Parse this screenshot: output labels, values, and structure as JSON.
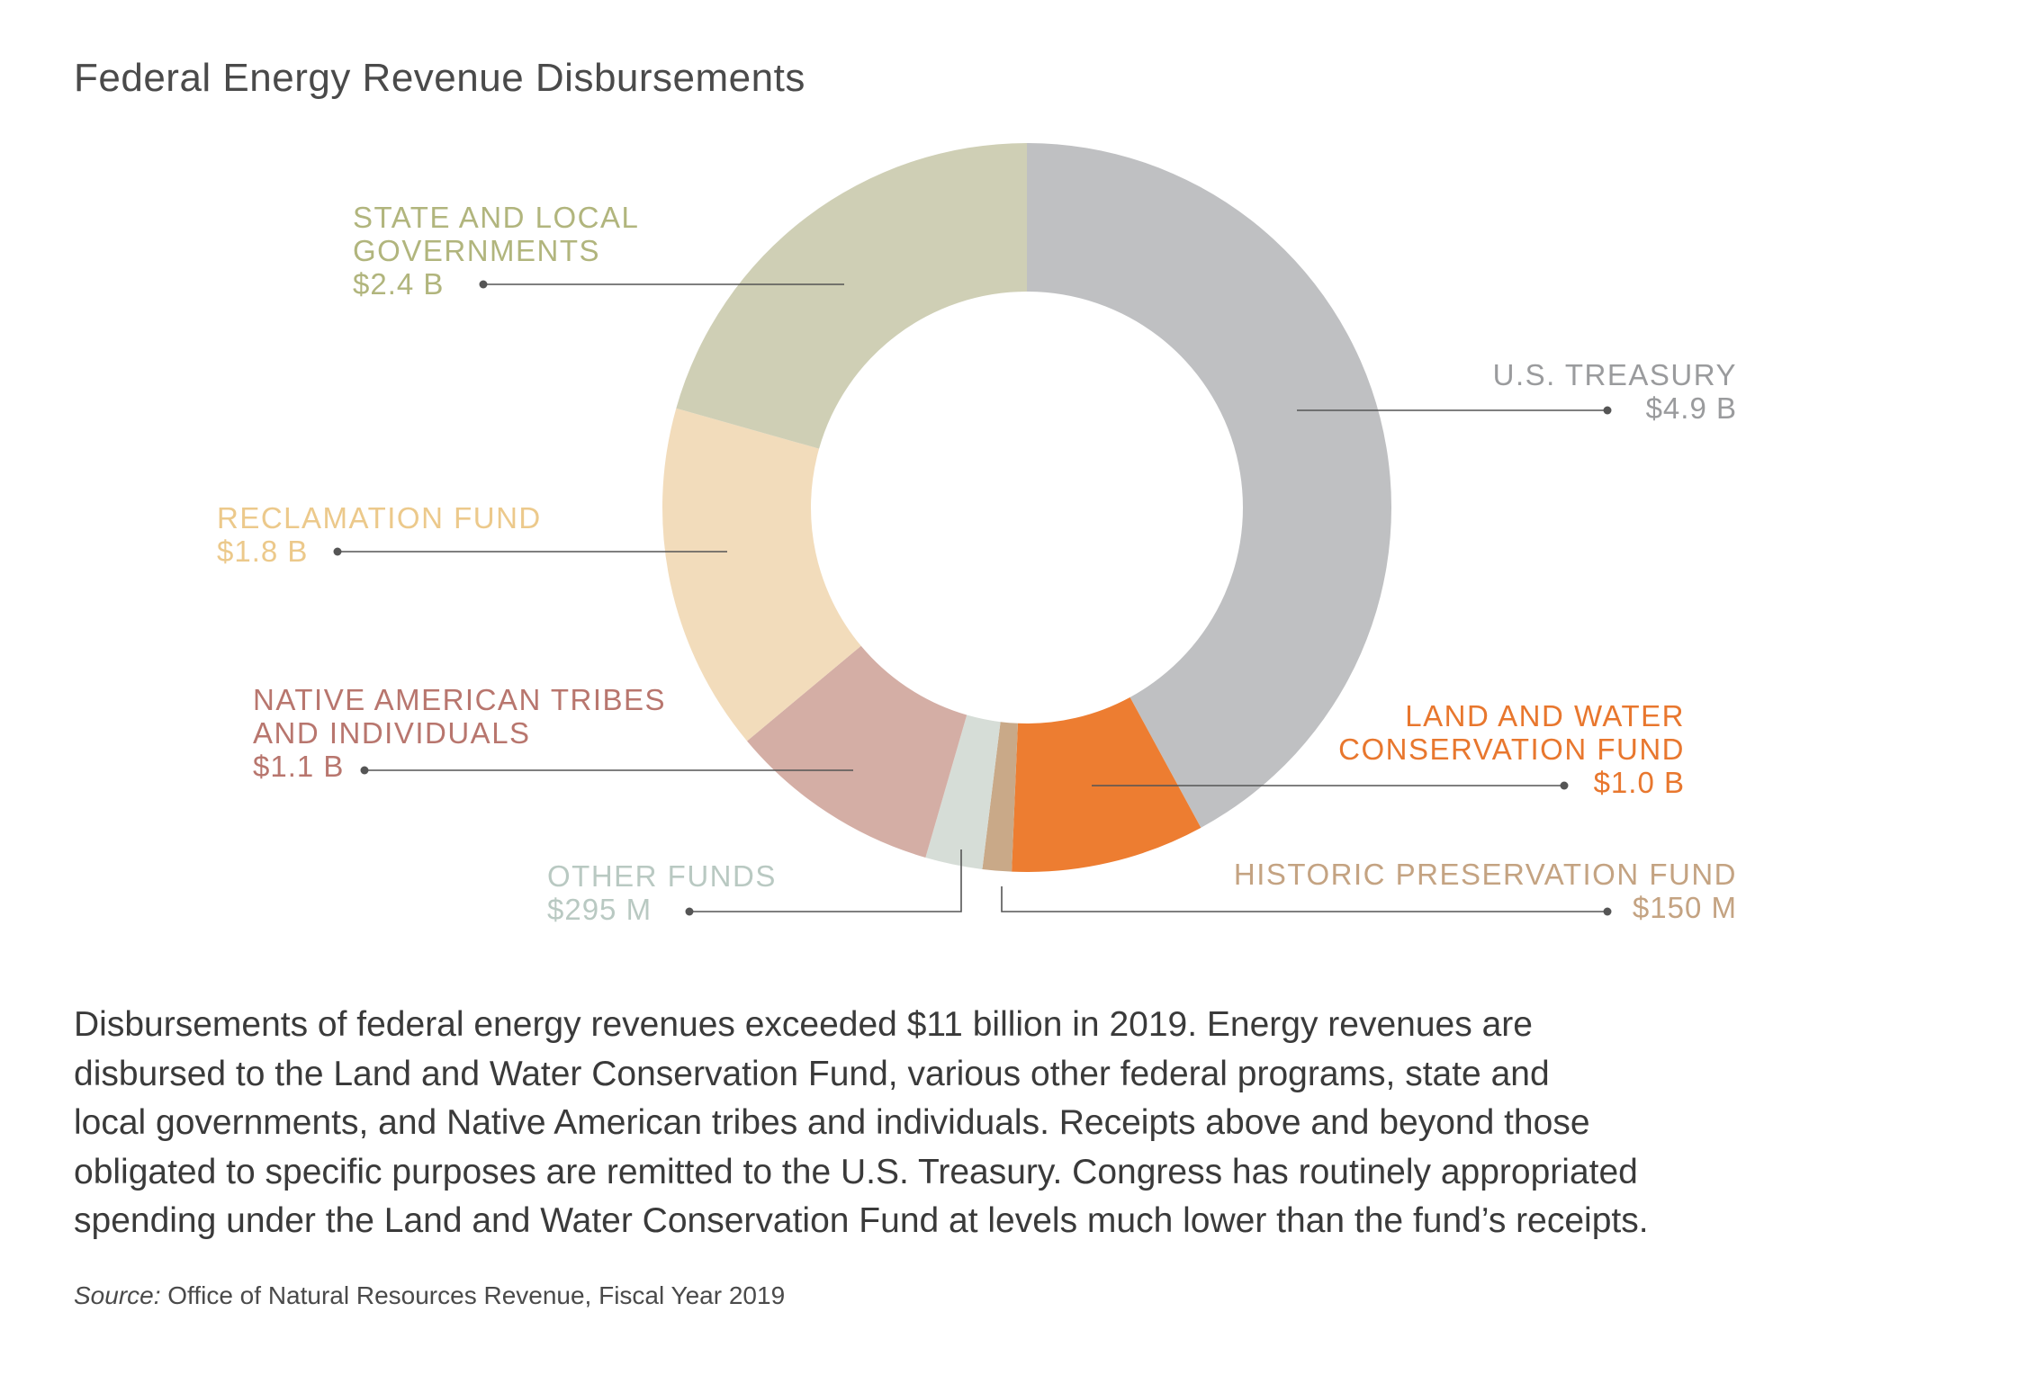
{
  "chart_data": {
    "type": "pie",
    "donut": true,
    "title": "Federal Energy Revenue Disbursements",
    "slices": [
      {
        "label_lines": [
          "U.S. TREASURY"
        ],
        "value_label": "$4.9 B",
        "value": 4.9,
        "color": "#bfc0c2"
      },
      {
        "label_lines": [
          "LAND AND WATER",
          "CONSERVATION FUND"
        ],
        "value_label": "$1.0 B",
        "value": 1.0,
        "color": "#ed7d31"
      },
      {
        "label_lines": [
          "HISTORIC PRESERVATION FUND"
        ],
        "value_label": "$150 M",
        "value": 0.15,
        "color": "#c9a988"
      },
      {
        "label_lines": [
          "OTHER FUNDS"
        ],
        "value_label": "$295 M",
        "value": 0.295,
        "color": "#d6ddd7"
      },
      {
        "label_lines": [
          "NATIVE AMERICAN TRIBES",
          "AND INDIVIDUALS"
        ],
        "value_label": "$1.1 B",
        "value": 1.1,
        "color": "#d4aea5"
      },
      {
        "label_lines": [
          "RECLAMATION FUND"
        ],
        "value_label": "$1.8 B",
        "value": 1.8,
        "color": "#f2dcbb"
      },
      {
        "label_lines": [
          "STATE AND LOCAL",
          "GOVERNMENTS"
        ],
        "value_label": "$2.4 B",
        "value": 2.4,
        "color": "#cfcfb5"
      }
    ],
    "label_colors": {
      "U.S. TREASURY": "#9a9b9d",
      "LAND AND WATER CONSERVATION FUND": "#e8772e",
      "HISTORIC PRESERVATION FUND": "#c4a382",
      "OTHER FUNDS": "#b9c9c2",
      "NATIVE AMERICAN TRIBES AND INDIVIDUALS": "#b8766e",
      "RECLAMATION FUND": "#ecc98b",
      "STATE AND LOCAL GOVERNMENTS": "#b1b57d"
    }
  },
  "description_lines": [
    "Disbursements of federal energy revenues exceeded $11 billion in 2019. Energy revenues are",
    "disbursed to the Land and Water Conservation Fund, various other federal programs, state and",
    "local governments, and Native American tribes and individuals. Receipts above and beyond those",
    "obligated to specific purposes are remitted to the U.S. Treasury. Congress has routinely appropriated",
    "spending under the Land and Water Conservation Fund at levels much lower than the fund’s receipts."
  ],
  "source": {
    "label": "Source:",
    "text": " Office of Natural Resources Revenue, Fiscal Year 2019"
  }
}
